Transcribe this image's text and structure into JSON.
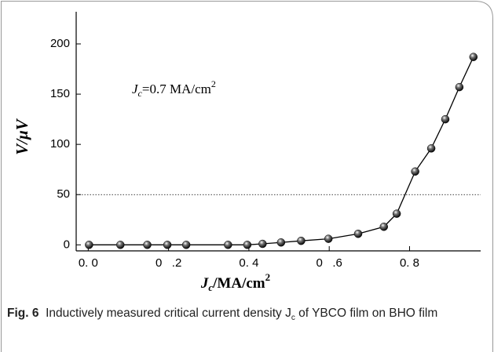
{
  "chart_data": {
    "type": "line",
    "annotation": {
      "symbol": "J",
      "subscript": "c",
      "text": "=0.7 MA/cm",
      "superscript": "2"
    },
    "x_label": {
      "symbol": "J",
      "subscript": "c",
      "text": "/MA/cm",
      "superscript": "2"
    },
    "y_label": "V/μV",
    "x": [
      0.002,
      0.08,
      0.147,
      0.197,
      0.244,
      0.348,
      0.396,
      0.434,
      0.48,
      0.53,
      0.598,
      0.672,
      0.736,
      0.768,
      0.814,
      0.854,
      0.889,
      0.924,
      0.959
    ],
    "series": [
      {
        "color": "#000000",
        "values": [
          0,
          0,
          0,
          0,
          0,
          0,
          0,
          1,
          2.4,
          4,
          6,
          11,
          18,
          31,
          73,
          96,
          125,
          157,
          187
        ]
      }
    ],
    "xlim": [
      -0.03,
      0.977
    ],
    "ylim": [
      -6,
      232
    ],
    "xticks": [
      {
        "value": 0,
        "label": "0. 0"
      },
      {
        "value": 0.2,
        "label": "0   .2"
      },
      {
        "value": 0.4,
        "label": "0. 4"
      },
      {
        "value": 0.6,
        "label": "0   .6"
      },
      {
        "value": 0.8,
        "label": "0. 8"
      }
    ],
    "yticks": [
      0,
      50,
      100,
      150,
      200
    ],
    "reference_line": 50
  },
  "caption": {
    "label": "Fig. 6",
    "text_before": "Inductively measured critical current density J",
    "subscript": "c",
    "text_after": " of YBCO film on BHO film"
  }
}
